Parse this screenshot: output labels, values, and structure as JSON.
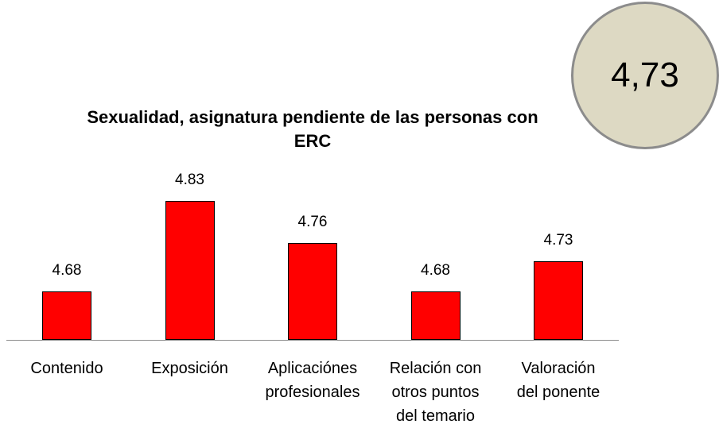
{
  "chart_data": {
    "type": "bar",
    "title": "Sexualidad, asignatura pendiente de las personas con ERC",
    "categories": [
      "Contenido",
      "Exposición",
      "Aplicaciónes\nprofesionales",
      "Relación con\notros puntos\ndel temario",
      "Valoración\ndel ponente"
    ],
    "values": [
      4.68,
      4.83,
      4.76,
      4.68,
      4.73
    ],
    "color": "#ff0000",
    "ylim": [
      4.6,
      4.85
    ],
    "annotation": "4,73"
  }
}
